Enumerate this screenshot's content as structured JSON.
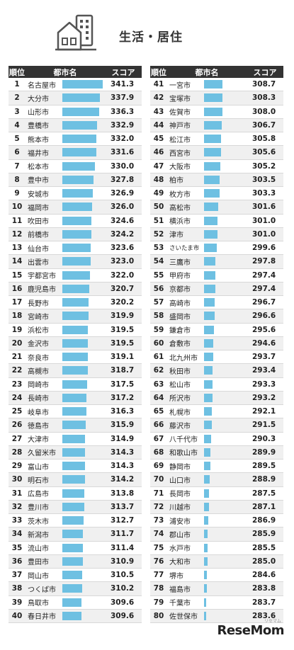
{
  "header": {
    "title": "生活・居住"
  },
  "columns": {
    "rank": "順位",
    "city": "都市名",
    "score": "スコア"
  },
  "logo": {
    "text": "ReseMom",
    "sub": "リセマム"
  },
  "colors": {
    "bar": "#6ec0e2",
    "header_bg": "#333333"
  },
  "chart_data": {
    "type": "bar",
    "title": "生活・居住",
    "xlim": [
      280,
      345
    ],
    "entries": [
      {
        "rank": "1",
        "city": "名古屋市",
        "score": 341.3
      },
      {
        "rank": "2",
        "city": "大分市",
        "score": 337.9
      },
      {
        "rank": "3",
        "city": "山形市",
        "score": 336.3
      },
      {
        "rank": "4",
        "city": "豊橋市",
        "score": 332.9
      },
      {
        "rank": "5",
        "city": "熊本市",
        "score": 332.0
      },
      {
        "rank": "6",
        "city": "福井市",
        "score": 331.6
      },
      {
        "rank": "7",
        "city": "松本市",
        "score": 330.0
      },
      {
        "rank": "8",
        "city": "豊中市",
        "score": 327.8
      },
      {
        "rank": "9",
        "city": "安城市",
        "score": 326.9
      },
      {
        "rank": "10",
        "city": "福岡市",
        "score": 326.0
      },
      {
        "rank": "11",
        "city": "吹田市",
        "score": 324.6
      },
      {
        "rank": "12",
        "city": "前橋市",
        "score": 324.2
      },
      {
        "rank": "13",
        "city": "仙台市",
        "score": 323.6
      },
      {
        "rank": "14",
        "city": "出雲市",
        "score": 323.0
      },
      {
        "rank": "15",
        "city": "宇都宮市",
        "score": 322.0
      },
      {
        "rank": "16",
        "city": "鹿児島市",
        "score": 320.7
      },
      {
        "rank": "17",
        "city": "長野市",
        "score": 320.2
      },
      {
        "rank": "18",
        "city": "宮崎市",
        "score": 319.9
      },
      {
        "rank": "19",
        "city": "浜松市",
        "score": 319.5
      },
      {
        "rank": "20",
        "city": "金沢市",
        "score": 319.5
      },
      {
        "rank": "21",
        "city": "奈良市",
        "score": 319.1
      },
      {
        "rank": "22",
        "city": "高槻市",
        "score": 318.7
      },
      {
        "rank": "23",
        "city": "岡崎市",
        "score": 317.5
      },
      {
        "rank": "24",
        "city": "長崎市",
        "score": 317.2
      },
      {
        "rank": "25",
        "city": "岐阜市",
        "score": 316.3
      },
      {
        "rank": "26",
        "city": "徳島市",
        "score": 315.9
      },
      {
        "rank": "27",
        "city": "大津市",
        "score": 314.9
      },
      {
        "rank": "28",
        "city": "久留米市",
        "score": 314.3
      },
      {
        "rank": "29",
        "city": "富山市",
        "score": 314.3
      },
      {
        "rank": "30",
        "city": "明石市",
        "score": 314.2
      },
      {
        "rank": "31",
        "city": "広島市",
        "score": 313.8
      },
      {
        "rank": "32",
        "city": "豊川市",
        "score": 313.7
      },
      {
        "rank": "33",
        "city": "茨木市",
        "score": 312.7
      },
      {
        "rank": "34",
        "city": "新潟市",
        "score": 311.7
      },
      {
        "rank": "35",
        "city": "流山市",
        "score": 311.4
      },
      {
        "rank": "36",
        "city": "豊田市",
        "score": 310.9
      },
      {
        "rank": "37",
        "city": "岡山市",
        "score": 310.5
      },
      {
        "rank": "38",
        "city": "つくば市",
        "score": 310.2
      },
      {
        "rank": "39",
        "city": "鳥取市",
        "score": 309.6
      },
      {
        "rank": "40",
        "city": "春日井市",
        "score": 309.6
      },
      {
        "rank": "41",
        "city": "一宮市",
        "score": 308.7
      },
      {
        "rank": "42",
        "city": "宝塚市",
        "score": 308.3
      },
      {
        "rank": "43",
        "city": "佐賀市",
        "score": 308.0
      },
      {
        "rank": "44",
        "city": "神戸市",
        "score": 306.7
      },
      {
        "rank": "45",
        "city": "松江市",
        "score": 305.8
      },
      {
        "rank": "46",
        "city": "西宮市",
        "score": 305.6
      },
      {
        "rank": "47",
        "city": "大阪市",
        "score": 305.2
      },
      {
        "rank": "48",
        "city": "柏市",
        "score": 303.5
      },
      {
        "rank": "49",
        "city": "枚方市",
        "score": 303.3
      },
      {
        "rank": "50",
        "city": "高松市",
        "score": 301.6
      },
      {
        "rank": "51",
        "city": "横浜市",
        "score": 301.0
      },
      {
        "rank": "52",
        "city": "津市",
        "score": 301.0
      },
      {
        "rank": "53",
        "city": "さいたま市",
        "score": 299.6
      },
      {
        "rank": "54",
        "city": "三鷹市",
        "score": 297.8
      },
      {
        "rank": "55",
        "city": "甲府市",
        "score": 297.4
      },
      {
        "rank": "56",
        "city": "京都市",
        "score": 297.4
      },
      {
        "rank": "57",
        "city": "高崎市",
        "score": 296.7
      },
      {
        "rank": "58",
        "city": "盛岡市",
        "score": 296.6
      },
      {
        "rank": "59",
        "city": "鎌倉市",
        "score": 295.6
      },
      {
        "rank": "60",
        "city": "倉敷市",
        "score": 294.6
      },
      {
        "rank": "61",
        "city": "北九州市",
        "score": 293.7
      },
      {
        "rank": "62",
        "city": "秋田市",
        "score": 293.4
      },
      {
        "rank": "63",
        "city": "松山市",
        "score": 293.3
      },
      {
        "rank": "64",
        "city": "所沢市",
        "score": 293.2
      },
      {
        "rank": "65",
        "city": "札幌市",
        "score": 292.1
      },
      {
        "rank": "66",
        "city": "藤沢市",
        "score": 291.5
      },
      {
        "rank": "67",
        "city": "八千代市",
        "score": 290.3
      },
      {
        "rank": "68",
        "city": "和歌山市",
        "score": 289.9
      },
      {
        "rank": "69",
        "city": "静岡市",
        "score": 289.5
      },
      {
        "rank": "70",
        "city": "山口市",
        "score": 288.9
      },
      {
        "rank": "71",
        "city": "長岡市",
        "score": 287.5
      },
      {
        "rank": "72",
        "city": "川越市",
        "score": 287.1
      },
      {
        "rank": "73",
        "city": "浦安市",
        "score": 286.9
      },
      {
        "rank": "74",
        "city": "郡山市",
        "score": 285.9
      },
      {
        "rank": "75",
        "city": "水戸市",
        "score": 285.5
      },
      {
        "rank": "76",
        "city": "大和市",
        "score": 285.0
      },
      {
        "rank": "77",
        "city": "堺市",
        "score": 284.6
      },
      {
        "rank": "78",
        "city": "福島市",
        "score": 283.8
      },
      {
        "rank": "79",
        "city": "千葉市",
        "score": 283.7
      },
      {
        "rank": "80",
        "city": "佐世保市",
        "score": 283.6
      }
    ]
  }
}
